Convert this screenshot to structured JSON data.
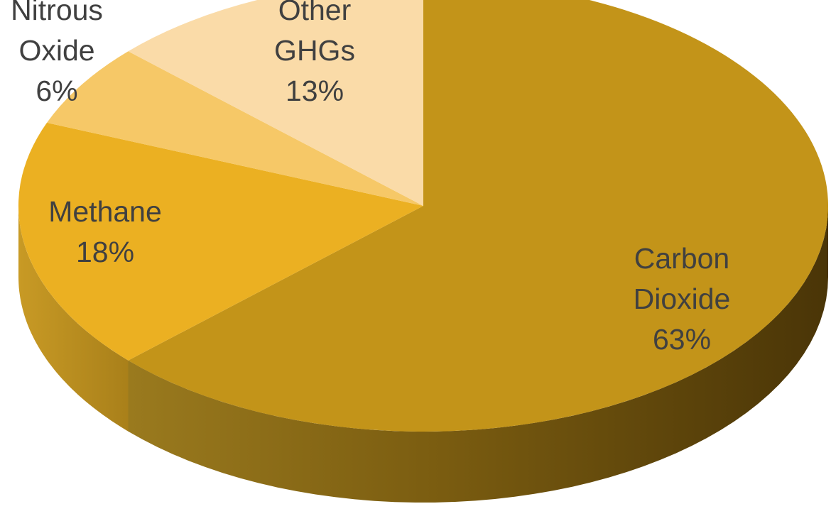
{
  "chart_data": {
    "type": "pie",
    "style": "3d",
    "title": "",
    "slices": [
      {
        "name_lines": [
          "Carbon",
          "Dioxide"
        ],
        "label": "Carbon Dioxide",
        "value": 63,
        "value_label": "63%",
        "color": "#C39419"
      },
      {
        "name_lines": [
          "Methane"
        ],
        "label": "Methane",
        "value": 18,
        "value_label": "18%",
        "color": "#EBB022"
      },
      {
        "name_lines": [
          "Nitrous",
          "Oxide"
        ],
        "label": "Nitrous Oxide",
        "value": 6,
        "value_label": "6%",
        "color": "#F6C867"
      },
      {
        "name_lines": [
          "Other",
          "GHGs"
        ],
        "label": "Other GHGs",
        "value": 13,
        "value_label": "13%",
        "color": "#FADBA8"
      }
    ],
    "legend": "none",
    "label_color": "#404040"
  }
}
